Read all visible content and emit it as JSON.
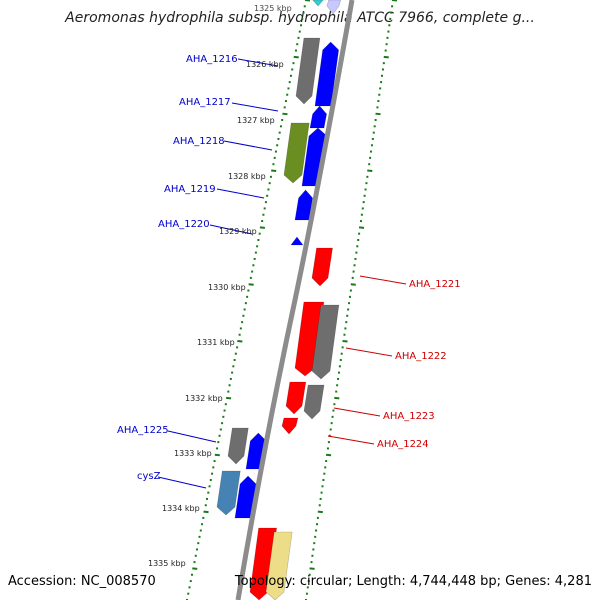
{
  "title": "Aeromonas hydrophila subsp. hydrophila ATCC 7966, complete g...",
  "footer": {
    "accession": "Accession: NC_008570",
    "topology": "Topology: circular; Length: 4,744,448 bp; Genes: 4,281"
  },
  "colors": {
    "backbone": "#8c8c8c",
    "tick": "#1a7a1a",
    "forward_gene": "#0000ff",
    "reverse_gene": "#ff0000",
    "pseudo_gene": "#6e6e6e",
    "forward_label": "#0000cc",
    "reverse_label": "#cc0000"
  },
  "kbp_labels": [
    "1325 kbp",
    "1326 kbp",
    "1327 kbp",
    "1328 kbp",
    "1329 kbp",
    "1330 kbp",
    "1331 kbp",
    "1332 kbp",
    "1333 kbp",
    "1334 kbp",
    "1335 kbp"
  ],
  "forward_labels": [
    "AHA_1216",
    "AHA_1217",
    "AHA_1218",
    "AHA_1219",
    "AHA_1220",
    "AHA_1225",
    "cysZ"
  ],
  "reverse_labels": [
    "AHA_1221",
    "AHA_1222",
    "AHA_1223",
    "AHA_1224"
  ]
}
